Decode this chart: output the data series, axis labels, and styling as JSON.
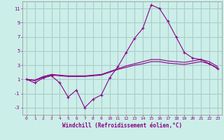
{
  "background_color": "#cceee8",
  "grid_color": "#aacccc",
  "line_color": "#880088",
  "x_values": [
    0,
    1,
    2,
    3,
    4,
    5,
    6,
    7,
    8,
    9,
    10,
    11,
    12,
    13,
    14,
    15,
    16,
    17,
    18,
    19,
    20,
    21,
    22,
    23
  ],
  "series1": [
    1.0,
    0.5,
    1.2,
    1.5,
    0.5,
    -1.5,
    -0.5,
    -3.0,
    -1.8,
    -1.2,
    1.2,
    2.8,
    4.8,
    6.8,
    8.2,
    11.5,
    11.0,
    9.2,
    7.0,
    4.8,
    4.0,
    3.8,
    3.2,
    2.5
  ],
  "series2": [
    1.0,
    0.8,
    1.3,
    1.6,
    1.5,
    1.4,
    1.4,
    1.4,
    1.5,
    1.6,
    2.0,
    2.4,
    2.7,
    3.0,
    3.2,
    3.5,
    3.5,
    3.3,
    3.2,
    3.1,
    3.3,
    3.5,
    3.2,
    2.6
  ],
  "series3": [
    1.0,
    0.9,
    1.4,
    1.7,
    1.6,
    1.5,
    1.5,
    1.5,
    1.6,
    1.7,
    2.1,
    2.5,
    2.9,
    3.2,
    3.5,
    3.8,
    3.8,
    3.6,
    3.5,
    3.4,
    3.6,
    3.8,
    3.5,
    2.8
  ],
  "ylim": [
    -4,
    12
  ],
  "xlim": [
    -0.5,
    23.5
  ],
  "yticks": [
    -3,
    -1,
    1,
    3,
    5,
    7,
    9,
    11
  ],
  "xticks": [
    0,
    1,
    2,
    3,
    4,
    5,
    6,
    7,
    8,
    9,
    10,
    11,
    12,
    13,
    14,
    15,
    16,
    17,
    18,
    19,
    20,
    21,
    22,
    23
  ],
  "xlabel": "Windchill (Refroidissement éolien,°C)"
}
